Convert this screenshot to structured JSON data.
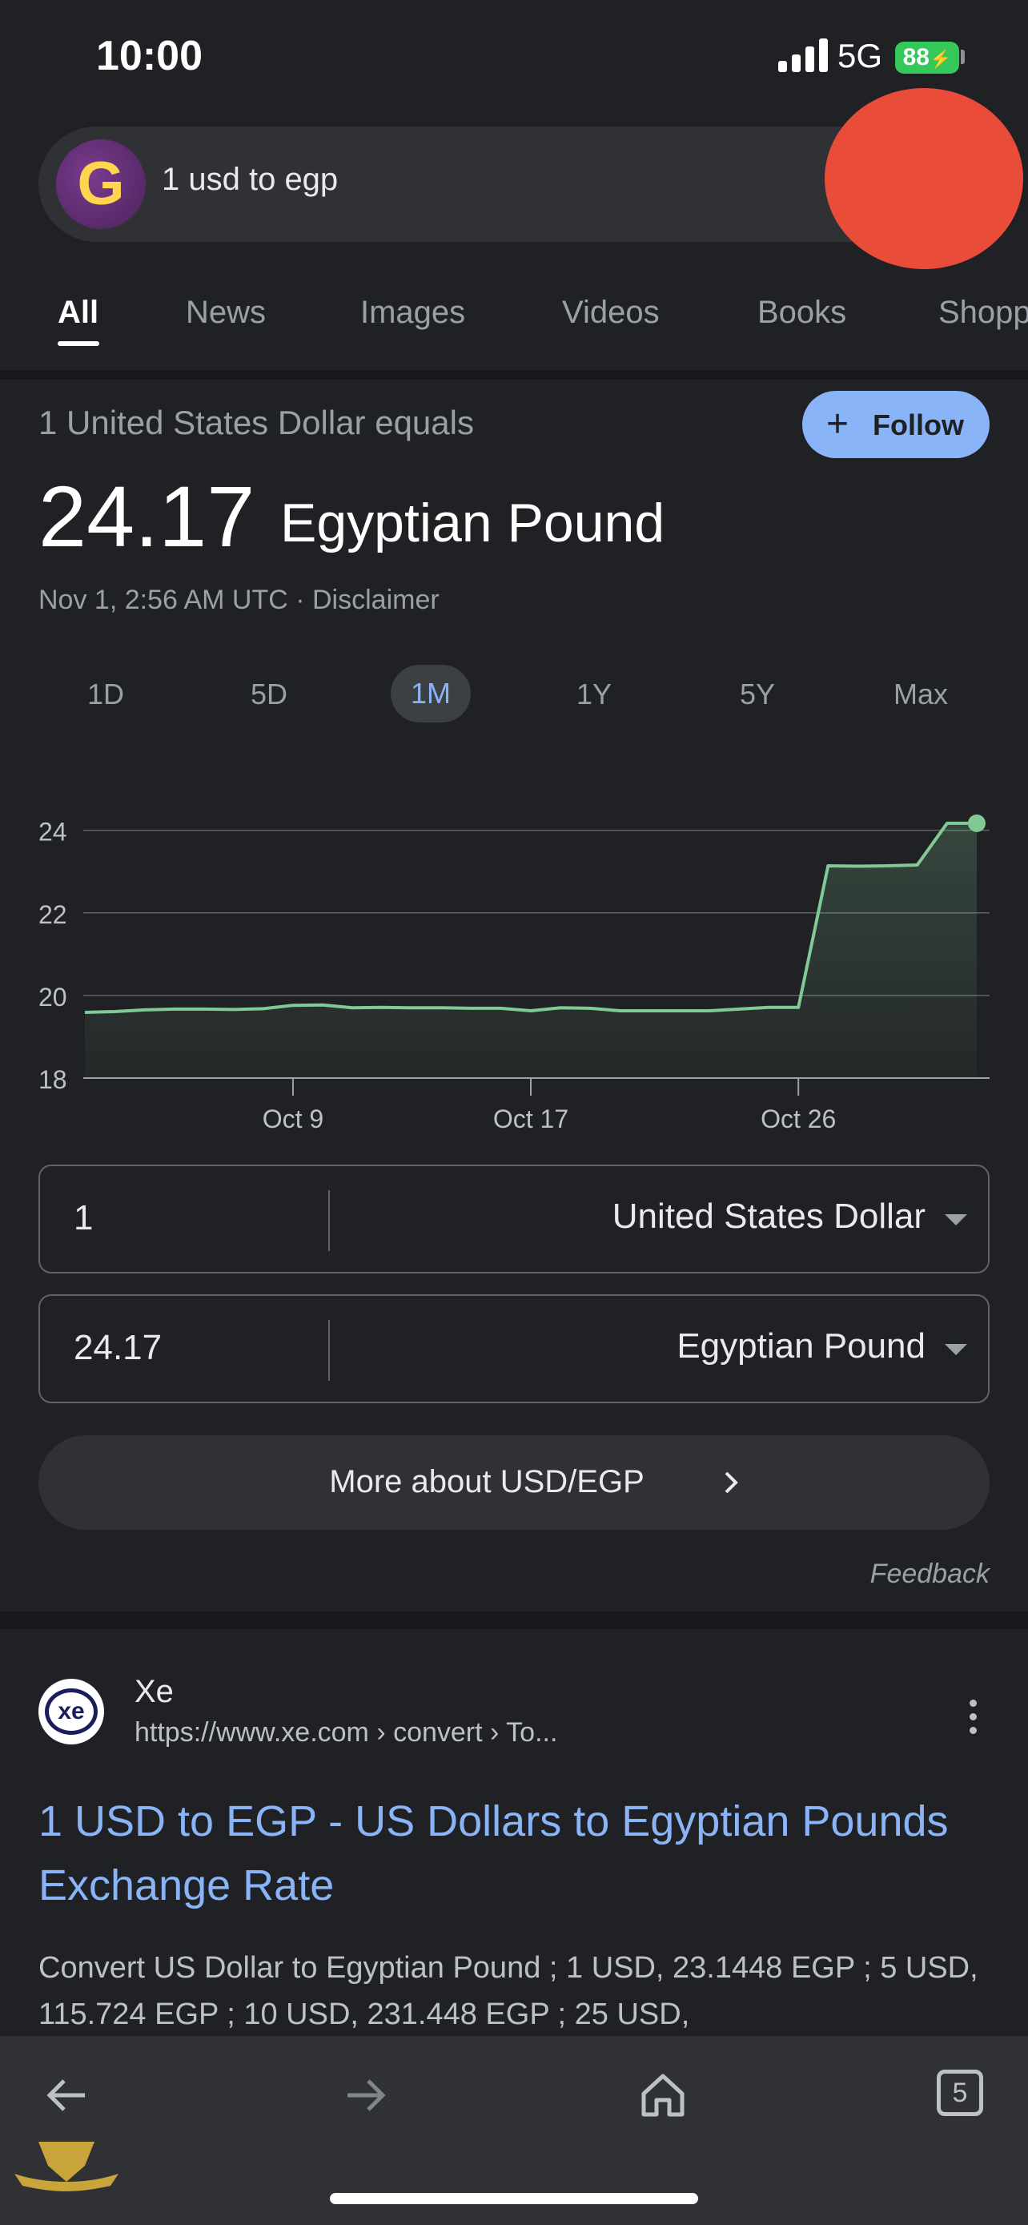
{
  "status_bar": {
    "time": "10:00",
    "network": "5G",
    "battery": "88"
  },
  "search": {
    "query": "1 usd to egp"
  },
  "tabs": [
    "All",
    "News",
    "Images",
    "Videos",
    "Books",
    "Shopp"
  ],
  "converter": {
    "label": "1 United States Dollar equals",
    "follow_label": "Follow",
    "value": "24.17",
    "unit": "Egyptian Pound",
    "timestamp": "Nov 1, 2:56 AM UTC · Disclaimer"
  },
  "ranges": [
    "1D",
    "5D",
    "1M",
    "1Y",
    "5Y",
    "Max"
  ],
  "active_range": "1M",
  "chart_data": {
    "type": "area",
    "x": [
      "Oct 2",
      "Oct 3",
      "Oct 4",
      "Oct 5",
      "Oct 6",
      "Oct 7",
      "Oct 8",
      "Oct 9",
      "Oct 10",
      "Oct 11",
      "Oct 12",
      "Oct 13",
      "Oct 14",
      "Oct 15",
      "Oct 16",
      "Oct 17",
      "Oct 18",
      "Oct 19",
      "Oct 20",
      "Oct 21",
      "Oct 22",
      "Oct 23",
      "Oct 24",
      "Oct 25",
      "Oct 26",
      "Oct 27",
      "Oct 28",
      "Oct 29",
      "Oct 30",
      "Oct 31",
      "Nov 1"
    ],
    "y": [
      19.59,
      19.61,
      19.65,
      19.67,
      19.67,
      19.66,
      19.68,
      19.76,
      19.77,
      19.7,
      19.71,
      19.7,
      19.7,
      19.69,
      19.69,
      19.63,
      19.7,
      19.69,
      19.63,
      19.63,
      19.63,
      19.63,
      19.67,
      19.71,
      19.71,
      23.14,
      23.13,
      23.14,
      23.16,
      24.17,
      24.17
    ],
    "xticks": [
      "Oct 9",
      "Oct 17",
      "Oct 26"
    ],
    "yticks": [
      18,
      20,
      22,
      24
    ],
    "ylim": [
      18,
      24.4
    ],
    "grid": true,
    "color": "#81c995"
  },
  "conversion": {
    "from_amount": "1",
    "from_currency": "United States Dollar",
    "to_amount": "24.17",
    "to_currency": "Egyptian Pound"
  },
  "more_button": "More about USD/EGP",
  "feedback": "Feedback",
  "result": {
    "site_name": "Xe",
    "logo_text": "xe",
    "url": "https://www.xe.com › convert › To...",
    "title": "1 USD to EGP - US Dollars to Egyptian Pounds Exchange Rate",
    "snippet": "Convert US Dollar to Egyptian Pound ; 1 USD, 23.1448 EGP ; 5 USD, 115.724 EGP ; 10 USD, 231.448 EGP ; 25 USD,"
  },
  "bottom_nav": {
    "tab_count": "5"
  }
}
